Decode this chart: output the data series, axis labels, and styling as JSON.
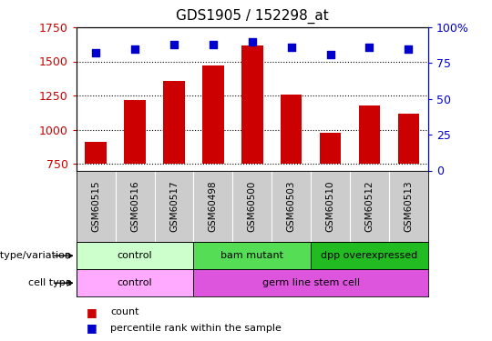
{
  "title": "GDS1905 / 152298_at",
  "samples": [
    "GSM60515",
    "GSM60516",
    "GSM60517",
    "GSM60498",
    "GSM60500",
    "GSM60503",
    "GSM60510",
    "GSM60512",
    "GSM60513"
  ],
  "counts": [
    910,
    1220,
    1360,
    1470,
    1620,
    1260,
    975,
    1175,
    1120
  ],
  "percentiles": [
    82,
    85,
    88,
    88,
    90,
    86,
    81,
    86,
    85
  ],
  "ylim_left": [
    700,
    1750
  ],
  "ylim_right": [
    0,
    100
  ],
  "yticks_left": [
    750,
    1000,
    1250,
    1500,
    1750
  ],
  "yticks_right": [
    0,
    25,
    50,
    75,
    100
  ],
  "bar_color": "#cc0000",
  "dot_color": "#0000cc",
  "dot_size": 35,
  "grid_color": "black",
  "grid_style": "dotted",
  "genotype_groups": [
    {
      "label": "control",
      "start": 0,
      "end": 3,
      "color": "#ccffcc"
    },
    {
      "label": "bam mutant",
      "start": 3,
      "end": 6,
      "color": "#55dd55"
    },
    {
      "label": "dpp overexpressed",
      "start": 6,
      "end": 9,
      "color": "#22bb22"
    }
  ],
  "celltype_groups": [
    {
      "label": "control",
      "start": 0,
      "end": 3,
      "color": "#ffaaff"
    },
    {
      "label": "germ line stem cell",
      "start": 3,
      "end": 9,
      "color": "#dd55dd"
    }
  ],
  "row_labels": [
    "genotype/variation",
    "cell type"
  ],
  "legend_items": [
    {
      "color": "#cc0000",
      "label": "count"
    },
    {
      "color": "#0000cc",
      "label": "percentile rank within the sample"
    }
  ],
  "tick_label_color_left": "#cc0000",
  "tick_label_color_right": "#0000cc",
  "sample_bg_color": "#cccccc",
  "baseline": 750
}
